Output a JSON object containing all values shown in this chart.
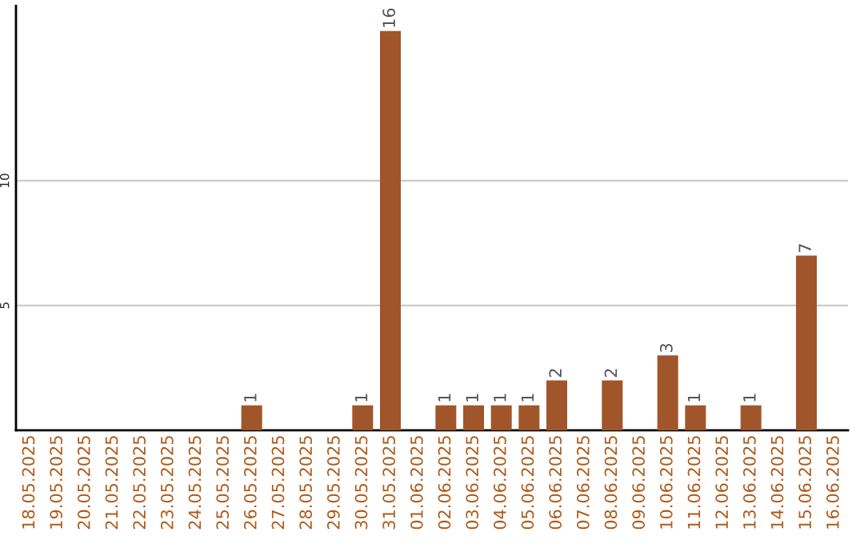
{
  "chart_data": {
    "type": "bar",
    "categories": [
      "18.05.2025",
      "19.05.2025",
      "20.05.2025",
      "21.05.2025",
      "22.05.2025",
      "23.05.2025",
      "24.05.2025",
      "25.05.2025",
      "26.05.2025",
      "27.05.2025",
      "28.05.2025",
      "29.05.2025",
      "30.05.2025",
      "31.05.2025",
      "01.06.2025",
      "02.06.2025",
      "03.06.2025",
      "04.06.2025",
      "05.06.2025",
      "06.06.2025",
      "07.06.2025",
      "08.06.2025",
      "09.06.2025",
      "10.06.2025",
      "11.06.2025",
      "12.06.2025",
      "13.06.2025",
      "14.06.2025",
      "15.06.2025",
      "16.06.2025"
    ],
    "values": [
      0,
      0,
      0,
      0,
      0,
      0,
      0,
      0,
      1,
      0,
      0,
      0,
      1,
      16,
      0,
      1,
      1,
      1,
      1,
      2,
      0,
      2,
      0,
      3,
      1,
      0,
      1,
      0,
      7,
      0
    ],
    "value_labels": [
      null,
      null,
      null,
      null,
      null,
      null,
      null,
      null,
      "1",
      null,
      null,
      null,
      "1",
      "16",
      null,
      "1",
      "1",
      "1",
      "1",
      "2",
      null,
      "2",
      null,
      "3",
      "1",
      null,
      "1",
      null,
      "7",
      null
    ],
    "color": "#a0562a",
    "ylim": [
      0,
      17
    ],
    "yticks": [
      5,
      10
    ],
    "grid": "y",
    "legend": false
  }
}
